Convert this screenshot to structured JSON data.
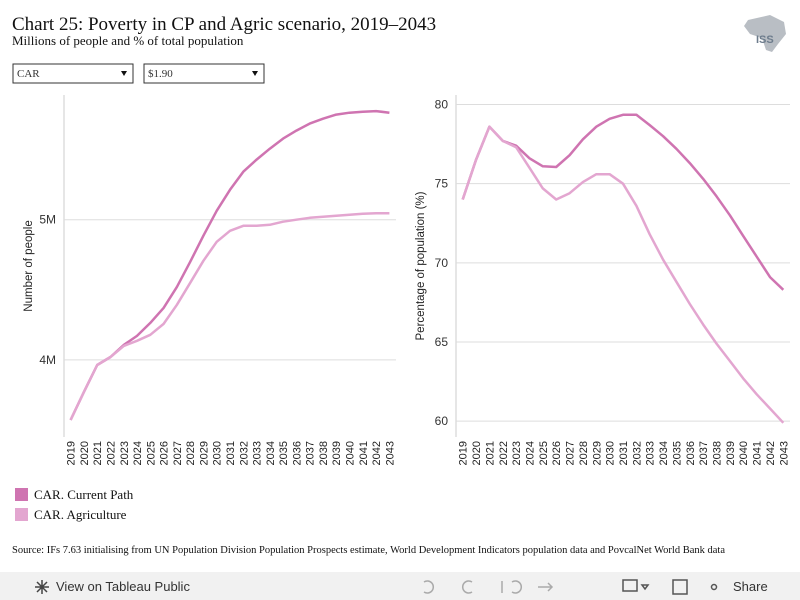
{
  "header": {
    "title": "Chart 25: Poverty in CP and Agric scenario, 2019–2043",
    "subtitle": "Millions of people and % of total population"
  },
  "controls": {
    "country": "CAR",
    "poverty_line": "$1.90"
  },
  "logo": {
    "text": "ISS"
  },
  "chart_data": [
    {
      "type": "line",
      "y_label": "Number of people",
      "categories": [
        "2019",
        "2020",
        "2021",
        "2022",
        "2023",
        "2024",
        "2025",
        "2026",
        "2027",
        "2028",
        "2029",
        "2030",
        "2031",
        "2032",
        "2033",
        "2034",
        "2035",
        "2036",
        "2037",
        "2038",
        "2039",
        "2040",
        "2041",
        "2042",
        "2043"
      ],
      "series": [
        {
          "name": "CAR. Current Path",
          "color": "#cf74b1",
          "values": [
            3571000,
            3771000,
            3964000,
            4021000,
            4107000,
            4171000,
            4264000,
            4371000,
            4521000,
            4700000,
            4886000,
            5064000,
            5214000,
            5343000,
            5429000,
            5507000,
            5579000,
            5636000,
            5686000,
            5721000,
            5750000,
            5764000,
            5771000,
            5775000,
            5764000
          ]
        },
        {
          "name": "CAR. Agriculture",
          "color": "#e3a6d0",
          "values": [
            3571000,
            3771000,
            3964000,
            4021000,
            4100000,
            4136000,
            4179000,
            4257000,
            4393000,
            4550000,
            4707000,
            4843000,
            4921000,
            4957000,
            4957000,
            4964000,
            4986000,
            5000000,
            5014000,
            5021000,
            5029000,
            5036000,
            5043000,
            5046000,
            5046000
          ]
        }
      ],
      "ylim": [
        3450000,
        5890000
      ],
      "yticks": [
        {
          "value": 4000000,
          "label": "4M"
        },
        {
          "value": 5000000,
          "label": "5M"
        }
      ],
      "grid": true
    },
    {
      "type": "line",
      "y_label": "Percentage of population (%)",
      "categories": [
        "2019",
        "2020",
        "2021",
        "2022",
        "2023",
        "2024",
        "2025",
        "2026",
        "2027",
        "2028",
        "2029",
        "2030",
        "2031",
        "2032",
        "2033",
        "2034",
        "2035",
        "2036",
        "2037",
        "2038",
        "2039",
        "2040",
        "2041",
        "2042",
        "2043"
      ],
      "series": [
        {
          "color": "#cf74b1",
          "values": [
            74.0,
            76.5,
            78.6,
            77.7,
            77.4,
            76.6,
            76.1,
            76.05,
            76.8,
            77.8,
            78.6,
            79.1,
            79.35,
            79.35,
            78.7,
            78.0,
            77.2,
            76.3,
            75.3,
            74.2,
            73.0,
            71.7,
            70.4,
            69.1,
            68.3
          ]
        },
        {
          "color": "#e3a6d0",
          "values": [
            74.0,
            76.5,
            78.6,
            77.7,
            77.3,
            76.0,
            74.7,
            74.0,
            74.4,
            75.1,
            75.6,
            75.6,
            75.0,
            73.6,
            71.8,
            70.2,
            68.8,
            67.4,
            66.1,
            64.9,
            63.8,
            62.7,
            61.7,
            60.8,
            59.9
          ]
        }
      ],
      "ylim": [
        59,
        80.6
      ],
      "yticks": [
        60,
        65,
        70,
        75,
        80
      ],
      "grid": true
    }
  ],
  "source": "Source: IFs 7.63 initialising from UN Population Division Population Prospects estimate, World Development Indicators population data and PovcalNet World Bank data",
  "toolbar": {
    "view": "View on Tableau Public",
    "share": "Share"
  }
}
